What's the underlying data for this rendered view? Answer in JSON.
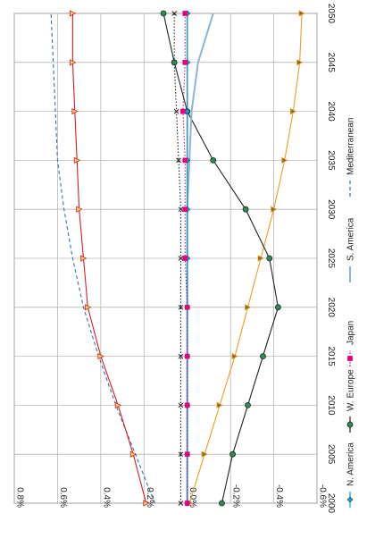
{
  "chart_data": {
    "type": "line",
    "orientation": "rotated-90-clockwise",
    "title": "",
    "xlabel": "",
    "ylabel": "",
    "x": [
      2000,
      2005,
      2010,
      2015,
      2020,
      2025,
      2030,
      2035,
      2040,
      2045,
      2050
    ],
    "x_tick_labels": [
      "2000",
      "2005",
      "2010",
      "2015",
      "2020",
      "2025",
      "2030",
      "2035",
      "2040",
      "2045",
      "2050"
    ],
    "ylim": [
      -0.006,
      0.008
    ],
    "y_tick_labels": [
      "-0.6%",
      "-0.4%",
      "-0.2%",
      "0.0%",
      "0.2%",
      "0.4%",
      "0.6%",
      "0.8%"
    ],
    "y_ticks": [
      -0.006,
      -0.004,
      -0.002,
      0,
      0.002,
      0.004,
      0.006,
      0.008
    ],
    "grid": true,
    "legend_position": "right",
    "series": [
      {
        "name": "N. America",
        "color": "#1f9bd6",
        "marker": "diamond",
        "style": "solid",
        "values": [
          0.0,
          0.0,
          0.0,
          0.0,
          0.0,
          0.0,
          0.0,
          0.0,
          0.0,
          0.0,
          0.0
        ]
      },
      {
        "name": "W. Europe",
        "color": "#222222",
        "marker": "circle",
        "marker_fill": "#2e8b57",
        "style": "solid",
        "values": [
          -0.0016,
          -0.0021,
          -0.0028,
          -0.0035,
          -0.0042,
          -0.0038,
          -0.0027,
          -0.0012,
          0.0,
          0.0006,
          0.0011
        ]
      },
      {
        "name": "Japan",
        "color": "#e6007e",
        "marker": "square",
        "style": "dotted",
        "values": [
          0.0,
          0.0,
          0.0,
          0.0,
          0.0,
          0.0001,
          0.0001,
          0.0001,
          0.0002,
          0.0001,
          0.0001
        ]
      },
      {
        "name": "S. America",
        "color": "#8ab4e0",
        "marker": "none",
        "style": "solid",
        "values": [
          0.0,
          0.0,
          0.0,
          0.0,
          0.0,
          0.0,
          0.0,
          -0.0001,
          -0.0002,
          -0.0005,
          -0.0012
        ]
      },
      {
        "name": "Mediterranean",
        "color": "#3a6fb5",
        "marker": "none",
        "style": "dashed",
        "values": [
          0.0015,
          0.0024,
          0.0033,
          0.0041,
          0.0048,
          0.0053,
          0.0057,
          0.006,
          0.0061,
          0.0062,
          0.0063
        ]
      },
      {
        "name": "",
        "color": "#d32020",
        "marker": "triangle",
        "marker_fill": "#f2d070",
        "style": "solid",
        "values": [
          0.0019,
          0.0025,
          0.0032,
          0.004,
          0.0046,
          0.0048,
          0.005,
          0.0051,
          0.0052,
          0.0053,
          0.0053
        ]
      },
      {
        "name": "",
        "color": "#e8a020",
        "marker": "triangle",
        "marker_fill": "#8a6a20",
        "style": "solid",
        "values": [
          -0.0001,
          -0.0008,
          -0.0015,
          -0.0022,
          -0.0028,
          -0.0034,
          -0.004,
          -0.0045,
          -0.0049,
          -0.0052,
          -0.0053
        ]
      },
      {
        "name": "",
        "color": "#222222",
        "marker": "x",
        "style": "dotted",
        "values": [
          0.0003,
          0.0003,
          0.0003,
          0.0003,
          0.0003,
          0.0003,
          0.0003,
          0.0004,
          0.0005,
          0.0006,
          0.0006
        ]
      }
    ]
  }
}
